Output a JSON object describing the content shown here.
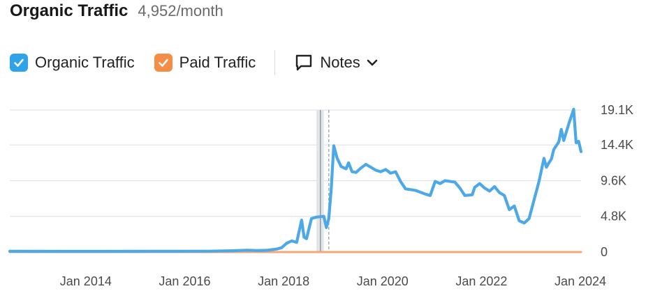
{
  "header": {
    "title": "Organic Traffic",
    "subtitle": "4,952/month"
  },
  "legend": {
    "organic": {
      "label": "Organic Traffic",
      "color": "#2ea3e8",
      "checked": true
    },
    "paid": {
      "label": "Paid Traffic",
      "color": "#f58d46",
      "checked": true
    },
    "notes": {
      "label": "Notes",
      "icon": "comment-icon"
    }
  },
  "chart_data": {
    "type": "line",
    "title": "",
    "xlabel": "",
    "ylabel": "",
    "ylim": [
      0,
      19100
    ],
    "y_ticks": [
      {
        "value": 0,
        "label": "0"
      },
      {
        "value": 4800,
        "label": "4.8K"
      },
      {
        "value": 9600,
        "label": "9.6K"
      },
      {
        "value": 14400,
        "label": "14.4K"
      },
      {
        "value": 19100,
        "label": "19.1K"
      }
    ],
    "x_range": [
      2013.0,
      2024.55
    ],
    "x_ticks": [
      {
        "value": 2014,
        "label": "Jan 2014"
      },
      {
        "value": 2016,
        "label": "Jan 2016"
      },
      {
        "value": 2018,
        "label": "Jan 2018"
      },
      {
        "value": 2020,
        "label": "Jan 2020"
      },
      {
        "value": 2022,
        "label": "Jan 2022"
      },
      {
        "value": 2024,
        "label": "Jan 2024"
      }
    ],
    "grid": true,
    "markers": [
      {
        "type": "band",
        "from": 2019.2,
        "to": 2019.35
      },
      {
        "type": "line",
        "x": 2019.28
      },
      {
        "type": "dashed-line",
        "x": 2019.45
      }
    ],
    "series": [
      {
        "name": "Organic Traffic",
        "color": "#4da8e8",
        "points": [
          [
            2013.0,
            100
          ],
          [
            2014.0,
            90
          ],
          [
            2015.0,
            95
          ],
          [
            2016.0,
            100
          ],
          [
            2017.0,
            110
          ],
          [
            2017.5,
            180
          ],
          [
            2017.8,
            250
          ],
          [
            2018.0,
            200
          ],
          [
            2018.2,
            230
          ],
          [
            2018.4,
            400
          ],
          [
            2018.5,
            600
          ],
          [
            2018.6,
            1200
          ],
          [
            2018.7,
            1500
          ],
          [
            2018.8,
            1300
          ],
          [
            2018.9,
            4300
          ],
          [
            2018.95,
            2000
          ],
          [
            2019.0,
            1800
          ],
          [
            2019.1,
            4500
          ],
          [
            2019.2,
            4700
          ],
          [
            2019.35,
            4800
          ],
          [
            2019.4,
            3300
          ],
          [
            2019.45,
            4500
          ],
          [
            2019.5,
            8500
          ],
          [
            2019.55,
            14300
          ],
          [
            2019.62,
            12600
          ],
          [
            2019.7,
            11500
          ],
          [
            2019.8,
            11200
          ],
          [
            2019.85,
            12000
          ],
          [
            2019.92,
            10800
          ],
          [
            2020.0,
            10700
          ],
          [
            2020.1,
            11300
          ],
          [
            2020.2,
            11800
          ],
          [
            2020.3,
            11400
          ],
          [
            2020.4,
            11000
          ],
          [
            2020.5,
            10800
          ],
          [
            2020.6,
            11100
          ],
          [
            2020.7,
            10600
          ],
          [
            2020.8,
            10800
          ],
          [
            2020.9,
            9500
          ],
          [
            2021.0,
            8500
          ],
          [
            2021.2,
            8300
          ],
          [
            2021.4,
            7800
          ],
          [
            2021.5,
            7600
          ],
          [
            2021.6,
            9500
          ],
          [
            2021.7,
            9200
          ],
          [
            2021.8,
            9600
          ],
          [
            2022.0,
            9400
          ],
          [
            2022.1,
            8600
          ],
          [
            2022.2,
            7600
          ],
          [
            2022.35,
            7700
          ],
          [
            2022.4,
            8700
          ],
          [
            2022.5,
            9200
          ],
          [
            2022.6,
            8600
          ],
          [
            2022.7,
            8200
          ],
          [
            2022.8,
            8800
          ],
          [
            2022.9,
            8000
          ],
          [
            2023.0,
            7600
          ],
          [
            2023.1,
            5700
          ],
          [
            2023.2,
            6200
          ],
          [
            2023.3,
            4200
          ],
          [
            2023.4,
            3900
          ],
          [
            2023.5,
            4500
          ],
          [
            2023.6,
            7000
          ],
          [
            2023.7,
            9500
          ],
          [
            2023.8,
            12600
          ],
          [
            2023.85,
            11400
          ],
          [
            2023.9,
            12000
          ],
          [
            2023.95,
            12500
          ],
          [
            2024.0,
            13800
          ],
          [
            2024.1,
            14800
          ],
          [
            2024.15,
            16500
          ],
          [
            2024.2,
            15000
          ],
          [
            2024.3,
            17200
          ],
          [
            2024.4,
            19200
          ],
          [
            2024.45,
            14700
          ],
          [
            2024.5,
            14900
          ],
          [
            2024.55,
            13500
          ]
        ]
      },
      {
        "name": "Paid Traffic",
        "color": "#f5a77a",
        "points": [
          [
            2013.0,
            0
          ],
          [
            2024.55,
            0
          ]
        ]
      }
    ]
  }
}
